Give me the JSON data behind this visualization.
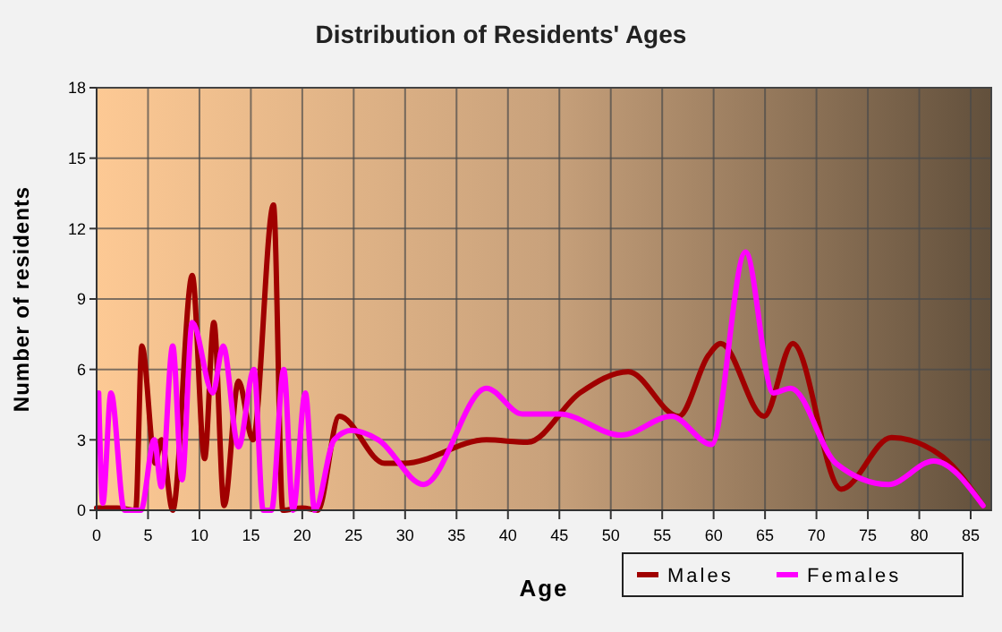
{
  "chart_data": {
    "type": "line",
    "title": "Distribution of Residents' Ages",
    "xlabel": "Age",
    "ylabel": "Number of residents",
    "xlim": [
      0,
      87
    ],
    "xticks": [
      0,
      5,
      10,
      15,
      20,
      25,
      30,
      35,
      40,
      45,
      50,
      55,
      60,
      65,
      70,
      75,
      80,
      85
    ],
    "ylim": [
      0,
      18
    ],
    "yticks": [
      0,
      3,
      6,
      9,
      12,
      15,
      18
    ],
    "grid": true,
    "legend": "bottom right",
    "marker": "none",
    "line_style": "solid",
    "series": [
      {
        "name": "Males",
        "color": "#a00000",
        "x": [
          0,
          2,
          3.8,
          4.4,
          5.7,
          6.3,
          7.4,
          9.3,
          10.5,
          11.4,
          12.4,
          13.8,
          15.2,
          17.2,
          18.1,
          20,
          21.5,
          23.6,
          28,
          29.9,
          37.9,
          41.9,
          47,
          51.7,
          56.6,
          59.5,
          60.7,
          64.9,
          67.7,
          72.4,
          77.3,
          82.2,
          86.2
        ],
        "values": [
          0.1,
          0.1,
          0,
          7,
          2,
          3,
          0,
          10,
          2.2,
          8,
          0.2,
          5.5,
          3,
          13,
          0,
          0.1,
          0,
          4,
          2,
          2,
          3,
          2.9,
          5,
          5.9,
          4,
          6.6,
          7.1,
          4,
          7.1,
          0.9,
          3.1,
          2.3,
          0.2
        ]
      },
      {
        "name": "Females",
        "color": "#ff00ff",
        "x": [
          0.2,
          0.6,
          1.4,
          2.7,
          4.3,
          5.6,
          6.3,
          7.4,
          8.3,
          9.3,
          11.3,
          12.3,
          13.8,
          15.3,
          16.2,
          17,
          18.2,
          19.1,
          20.3,
          21.2,
          23.1,
          24.8,
          27.4,
          31.8,
          37.9,
          41.4,
          45,
          51,
          55.9,
          59.8,
          63.1,
          65.8,
          67.5,
          71.9,
          77,
          81.4,
          86.2
        ],
        "values": [
          5,
          0.3,
          5,
          0,
          0,
          3,
          1,
          7,
          1.3,
          8,
          5,
          7,
          2.7,
          6,
          0,
          0,
          6,
          0,
          5,
          0,
          3,
          3.4,
          3,
          1.1,
          5.2,
          4.1,
          4.1,
          3.2,
          4,
          2.8,
          11,
          5,
          5.2,
          2,
          1.1,
          2.1,
          0.2
        ]
      }
    ]
  }
}
